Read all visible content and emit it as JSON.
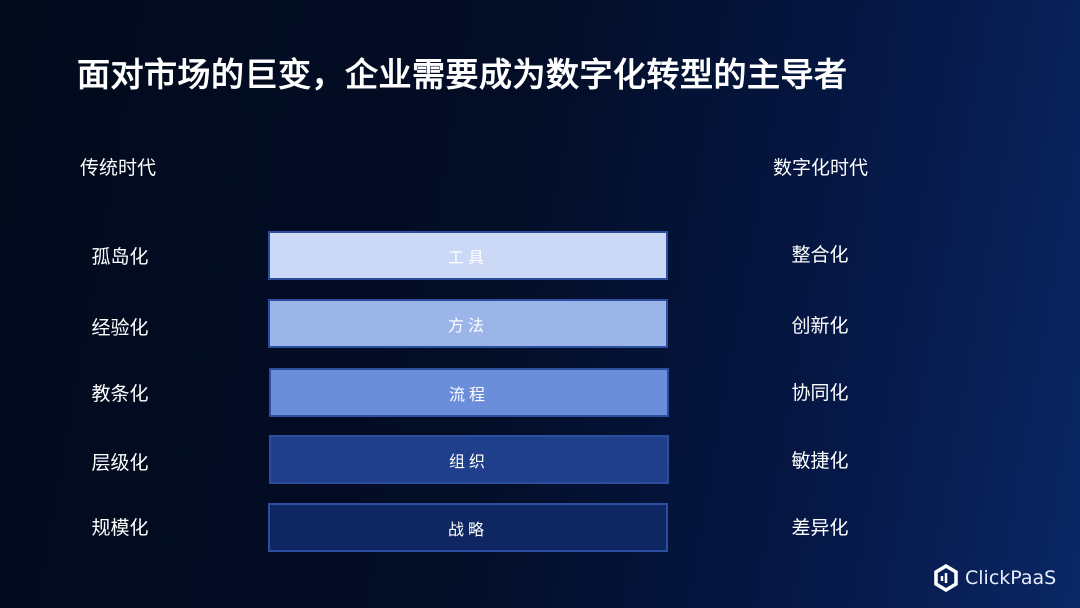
{
  "title": "面对市场的巨变，企业需要成为数字化转型的主导者",
  "left_header": "传统时代",
  "right_header": "数字化时代",
  "left_items": [
    "孤岛化",
    "经验化",
    "教条化",
    "层级化",
    "规模化"
  ],
  "right_items": [
    "整合化",
    "创新化",
    "协同化",
    "敏捷化",
    "差异化"
  ],
  "layers": [
    {
      "label": "工具",
      "color": "#cbd9f6"
    },
    {
      "label": "方法",
      "color": "#9bb5e9"
    },
    {
      "label": "流程",
      "color": "#6b8edb"
    },
    {
      "label": "组织",
      "color": "#1f3f8a"
    },
    {
      "label": "战略",
      "color": "#0e2763"
    }
  ],
  "brand": "ClickPaaS"
}
